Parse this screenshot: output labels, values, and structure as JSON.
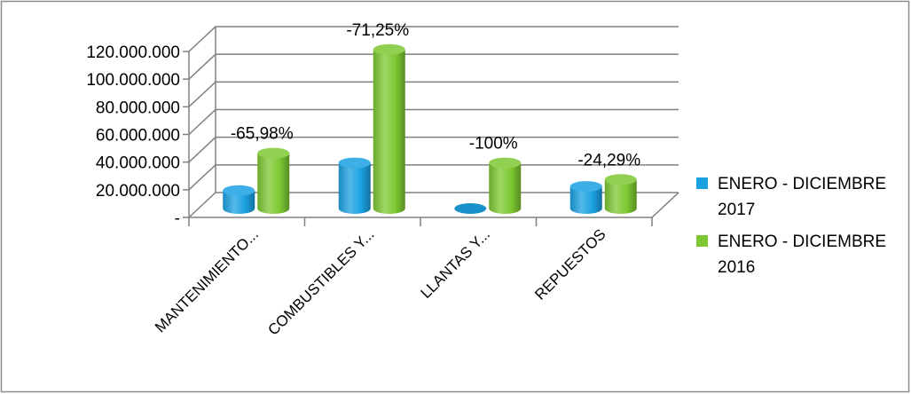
{
  "chart_data": {
    "type": "bar",
    "style": "3d-cylinder",
    "categories": [
      "MANTENIMIENTO...",
      "COMBUSTIBLES Y...",
      "LLANTAS Y...",
      "REPUESTOS"
    ],
    "series": [
      {
        "name": "ENERO - DICIEMBRE 2017",
        "color": "#1ba1e2",
        "values": [
          13000000,
          33000000,
          0,
          16000000
        ]
      },
      {
        "name": "ENERO - DICIEMBRE 2016",
        "color": "#7dc832",
        "values": [
          40000000,
          115000000,
          33000000,
          21000000
        ]
      }
    ],
    "data_labels": [
      "-65,98%",
      "-71,25%",
      "-100%",
      "-24,29%"
    ],
    "y_ticks": [
      {
        "value": 0,
        "label": "-"
      },
      {
        "value": 20000000,
        "label": "20.000.000"
      },
      {
        "value": 40000000,
        "label": "40.000.000"
      },
      {
        "value": 60000000,
        "label": "60.000.000"
      },
      {
        "value": 80000000,
        "label": "80.000.000"
      },
      {
        "value": 100000000,
        "label": "100.000.000"
      },
      {
        "value": 120000000,
        "label": "120.000.000"
      }
    ],
    "ylim": [
      0,
      120000000
    ],
    "grid": true,
    "legend": {
      "position": "right",
      "entries": [
        {
          "line1": "ENERO - DICIEMBRE",
          "line2": "2017",
          "color": "#1ba1e2"
        },
        {
          "line1": "ENERO - DICIEMBRE",
          "line2": "2016",
          "color": "#7dc832"
        }
      ]
    },
    "colors": {
      "grid": "#808080",
      "border": "#8c8c8c"
    }
  }
}
